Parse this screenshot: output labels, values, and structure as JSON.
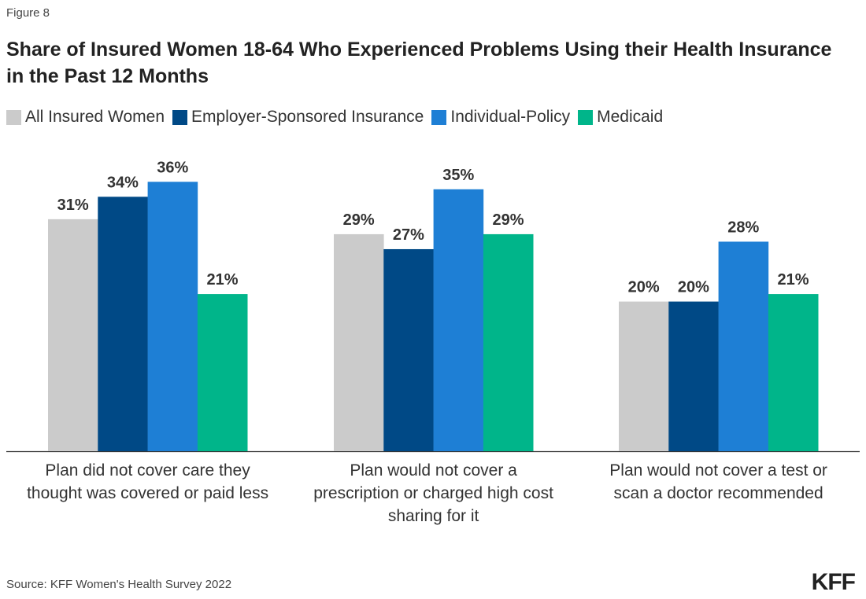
{
  "figure_label": "Figure 8",
  "source": "Source: KFF Women's Health Survey 2022",
  "logo": "KFF",
  "chart_data": {
    "type": "bar",
    "title": "Share of Insured Women 18-64 Who Experienced Problems Using their Health Insurance in the Past 12 Months",
    "categories": [
      "Plan did not cover care they thought was covered or paid less",
      "Plan would not cover a prescription or charged high cost sharing for it",
      "Plan would not cover a test or scan a doctor recommended"
    ],
    "series": [
      {
        "name": "All Insured Women",
        "color": "#cbcbcb",
        "values": [
          31,
          29,
          20
        ]
      },
      {
        "name": "Employer-Sponsored Insurance",
        "color": "#004986",
        "values": [
          34,
          27,
          20
        ]
      },
      {
        "name": "Individual-Policy",
        "color": "#1e7fd5",
        "values": [
          36,
          35,
          28
        ]
      },
      {
        "name": "Medicaid",
        "color": "#00b58a",
        "values": [
          21,
          29,
          21
        ]
      }
    ],
    "value_format": "%",
    "ylim": [
      0,
      40
    ],
    "grid": false,
    "legend_position": "top-left",
    "xlabel": "",
    "ylabel": ""
  }
}
